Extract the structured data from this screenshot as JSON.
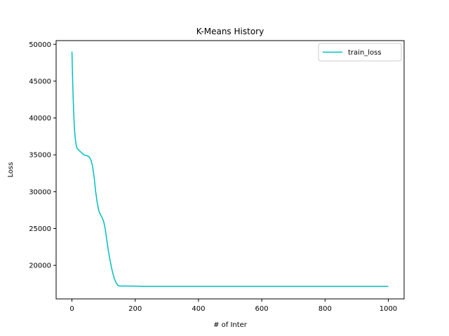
{
  "chart_data": {
    "type": "line",
    "title": "K-Means History",
    "xlabel": "# of Inter",
    "ylabel": "Loss",
    "xlim": [
      -50,
      1050
    ],
    "ylim": [
      15450,
      50500
    ],
    "xticks": [
      0,
      200,
      400,
      600,
      800,
      1000
    ],
    "yticks": [
      20000,
      25000,
      30000,
      35000,
      40000,
      45000,
      50000
    ],
    "grid": false,
    "legend_position": "top-right",
    "series": [
      {
        "name": "train_loss",
        "color": "#00bfbf",
        "x": [
          0,
          2,
          4,
          6,
          8,
          10,
          13,
          16,
          20,
          25,
          30,
          35,
          40,
          45,
          50,
          55,
          60,
          65,
          70,
          75,
          80,
          85,
          90,
          95,
          100,
          105,
          110,
          115,
          120,
          125,
          130,
          135,
          140,
          145,
          150,
          155,
          160,
          165,
          170,
          180,
          200,
          220,
          250,
          300,
          400,
          500,
          600,
          700,
          800,
          900,
          1000
        ],
        "values": [
          49000,
          45500,
          42500,
          40200,
          38500,
          37400,
          36400,
          35900,
          35700,
          35500,
          35300,
          35100,
          34950,
          34900,
          34850,
          34700,
          34300,
          33500,
          32000,
          30000,
          28500,
          27400,
          26900,
          26500,
          26000,
          25000,
          23500,
          22000,
          20800,
          19700,
          18800,
          18100,
          17600,
          17300,
          17200,
          17200,
          17200,
          17200,
          17200,
          17200,
          17180,
          17150,
          17150,
          17150,
          17150,
          17150,
          17150,
          17150,
          17150,
          17150,
          17150
        ]
      }
    ]
  }
}
